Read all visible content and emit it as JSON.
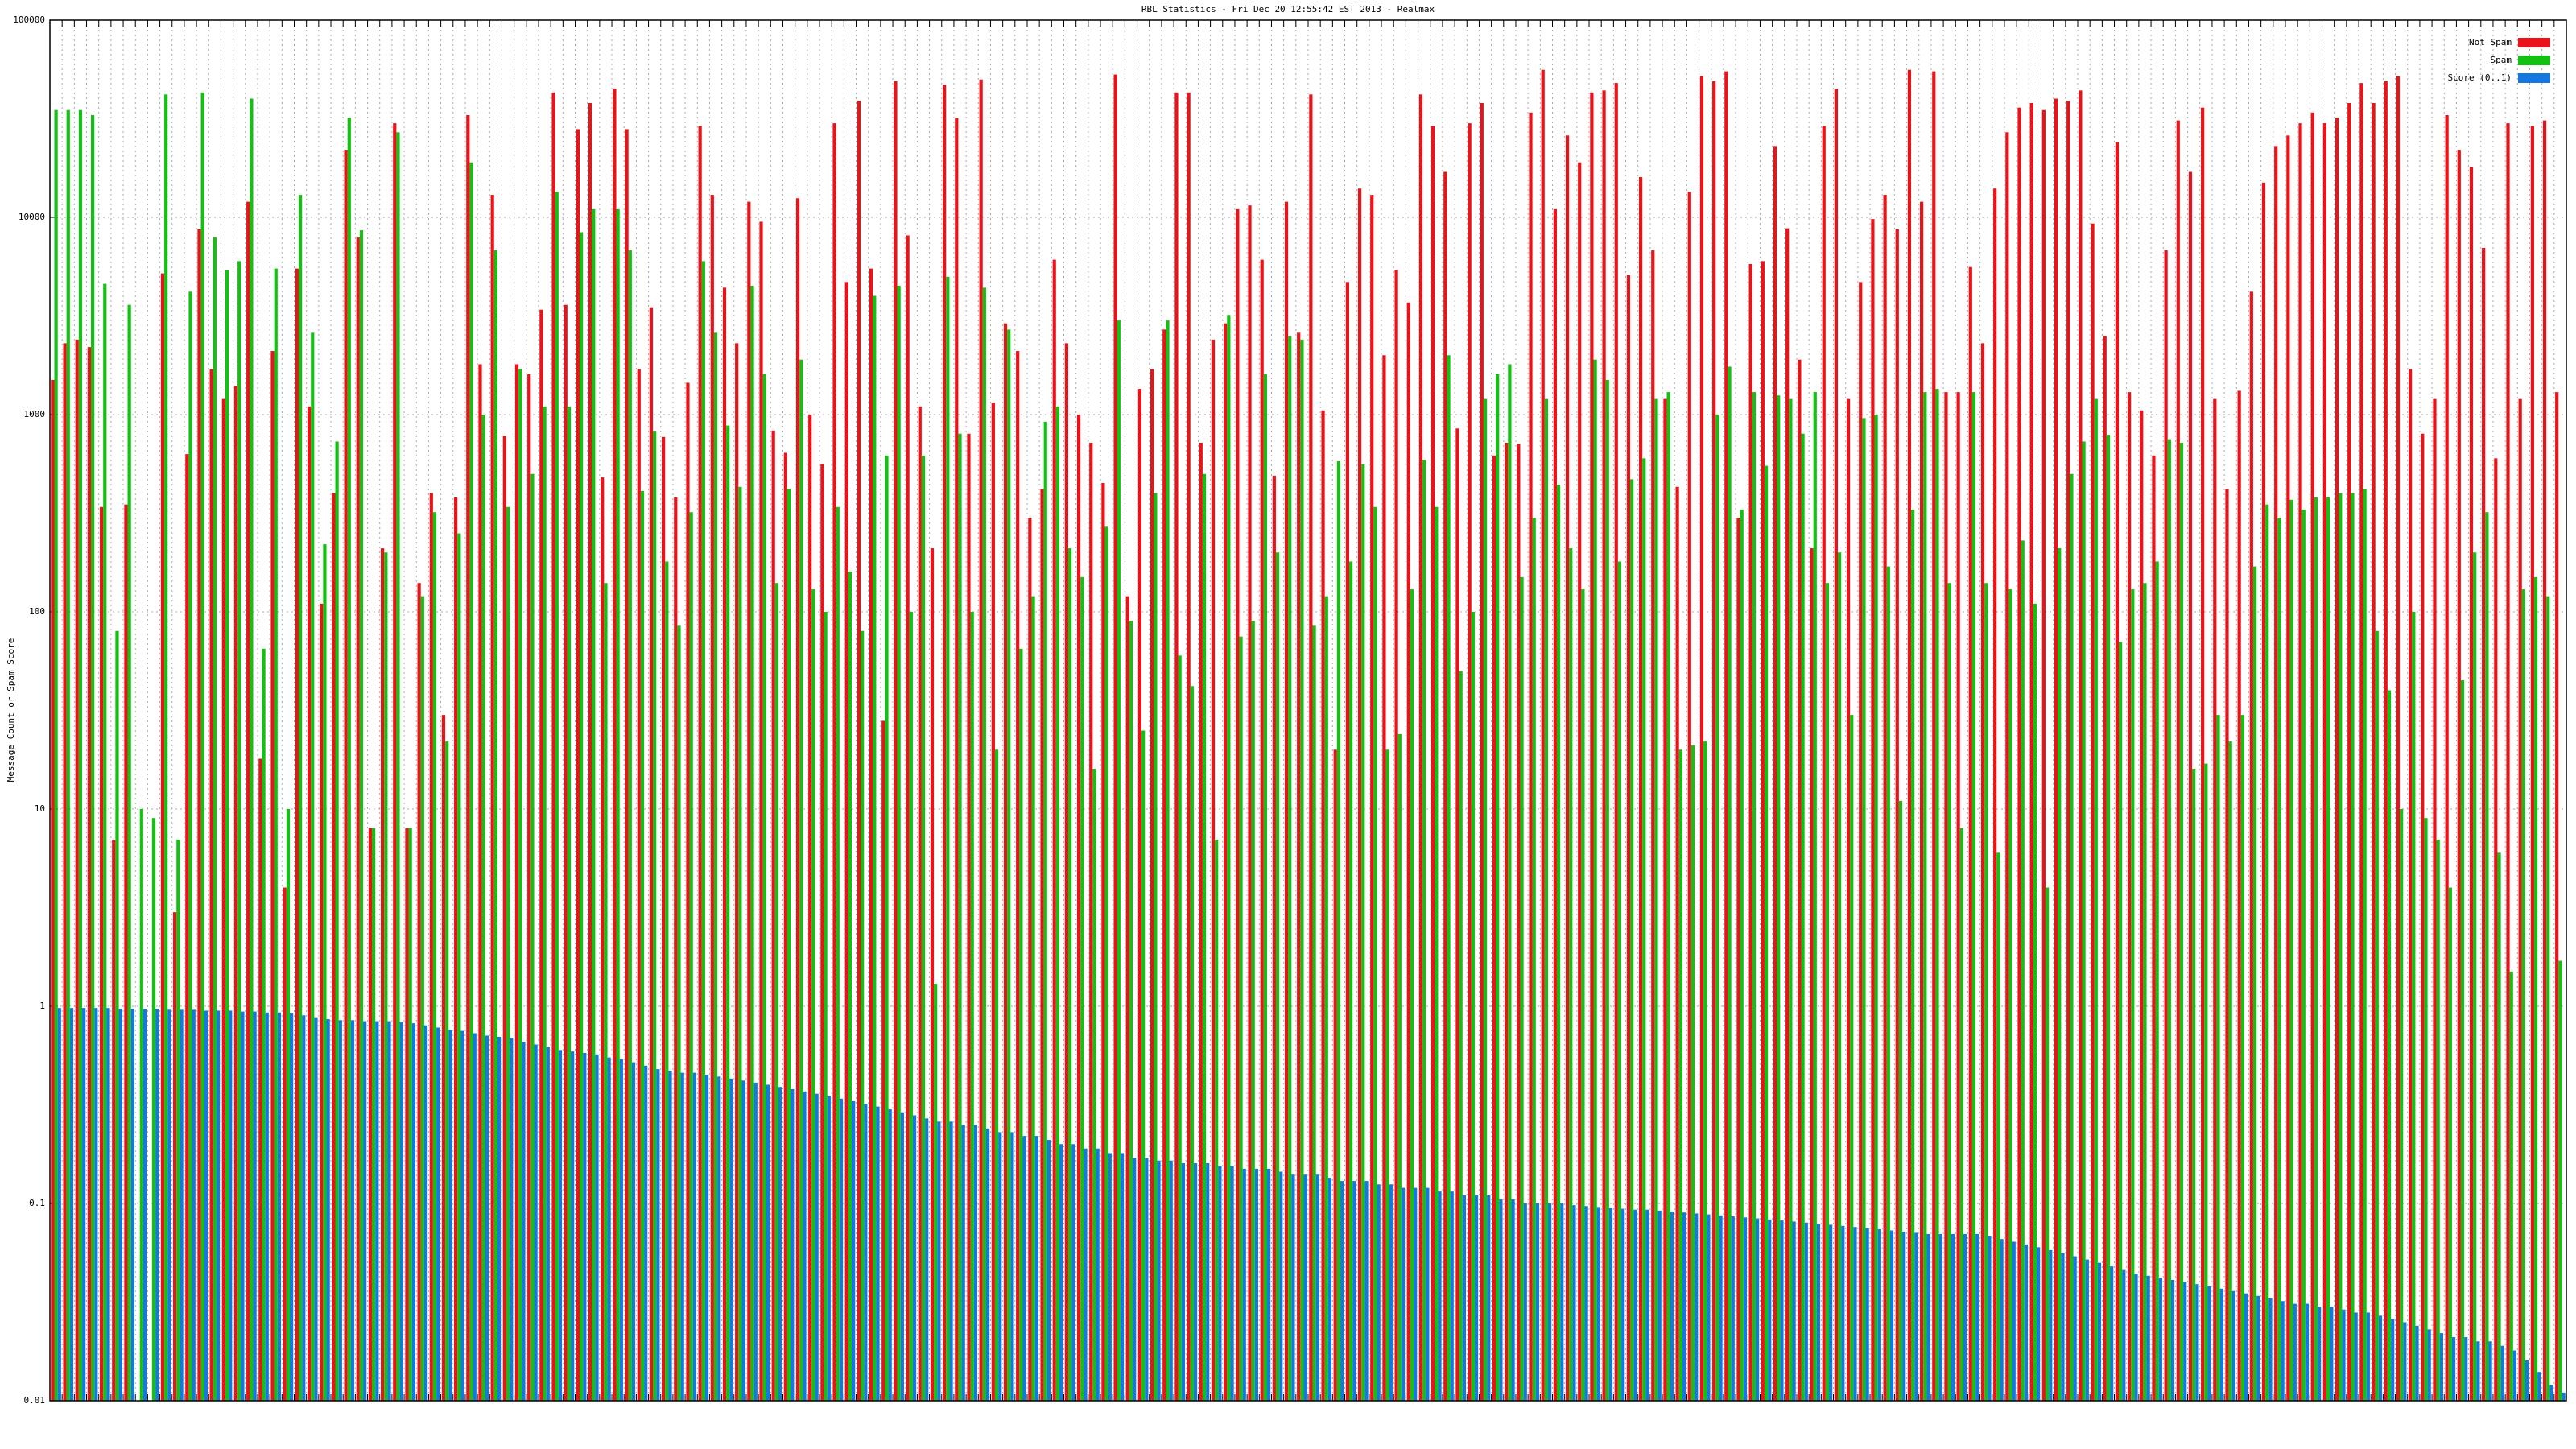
{
  "chart_data": {
    "type": "bar",
    "title": "RBL Statistics - Fri Dec 20 12:55:42 EST 2013 - Realmax",
    "y_label": "Message Count or Spam Score",
    "log_scale": true,
    "grid": true,
    "legend": "top-right",
    "ylim": [
      0.01,
      100000
    ],
    "yticks": [
      0.01,
      0.1,
      1,
      10,
      100,
      1000,
      10000,
      100000
    ],
    "categories": [
      null,
      null,
      null,
      null,
      null,
      null,
      null,
      null,
      null,
      null,
      null,
      null,
      null,
      null,
      null,
      null,
      null,
      null,
      null,
      null,
      null,
      null,
      null,
      null,
      null,
      null,
      null,
      null,
      null,
      null,
      null,
      null,
      null,
      null,
      null,
      null,
      null,
      null,
      null,
      null,
      null,
      null,
      null,
      null,
      null,
      null,
      null,
      null,
      null,
      null,
      null,
      null,
      null,
      null,
      null,
      null,
      null,
      null,
      null,
      null,
      null,
      null,
      null,
      null,
      null,
      null,
      null,
      null,
      null,
      null,
      null,
      null,
      null,
      null,
      null,
      null,
      null,
      null,
      null,
      null,
      null,
      null,
      null,
      null,
      null,
      null,
      null,
      null,
      null,
      null,
      null,
      null,
      null,
      null,
      null,
      null,
      null,
      null,
      null,
      null,
      null,
      null,
      null,
      null,
      null,
      null,
      null,
      null,
      null,
      null,
      null,
      null,
      null,
      null,
      null,
      null,
      null,
      null,
      null,
      null,
      null,
      null,
      null,
      null,
      null,
      null,
      null,
      null,
      null,
      null,
      null,
      null,
      null,
      null,
      null,
      null,
      null,
      null,
      null,
      null,
      null,
      null,
      null,
      null,
      null,
      null,
      null,
      null,
      null,
      null,
      null,
      null,
      null,
      null,
      null,
      null,
      null,
      null,
      null,
      null,
      null,
      null,
      null,
      null,
      null,
      null,
      null,
      null,
      null,
      null,
      null,
      null,
      null,
      null,
      null,
      null,
      null,
      null,
      null,
      null,
      null,
      null,
      null,
      null,
      null,
      null,
      null,
      null,
      null,
      null,
      null,
      null,
      null,
      null,
      null,
      null,
      null,
      null,
      null,
      null,
      null,
      null,
      null,
      null,
      null,
      null
    ],
    "series": [
      {
        "name": "Not Spam",
        "color": "#e8141a",
        "values": [
          1500,
          2300,
          2400,
          2200,
          340,
          7,
          350,
          null,
          null,
          5200,
          3,
          630,
          8700,
          1700,
          1200,
          1400,
          12000,
          18,
          2100,
          4,
          5500,
          1100,
          110,
          400,
          22000,
          7900,
          8,
          210,
          30000,
          8,
          140,
          400,
          30,
          380,
          33000,
          1800,
          13000,
          780,
          1800,
          1600,
          3400,
          43000,
          3600,
          28000,
          38000,
          480,
          45000,
          28000,
          1700,
          3500,
          770,
          380,
          1450,
          29000,
          13000,
          4400,
          2300,
          12000,
          9500,
          830,
          640,
          12500,
          1000,
          560,
          30000,
          4700,
          39000,
          5500,
          28,
          49000,
          8100,
          1100,
          210,
          47000,
          32000,
          800,
          50000,
          1150,
          2900,
          2100,
          300,
          420,
          6100,
          2300,
          1000,
          720,
          450,
          53000,
          120,
          1350,
          1700,
          2700,
          43000,
          43000,
          720,
          2400,
          2900,
          11000,
          11500,
          6100,
          490,
          12000,
          2600,
          42000,
          1050,
          20,
          4700,
          14000,
          13000,
          2000,
          5400,
          3700,
          42000,
          29000,
          17000,
          850,
          30000,
          38000,
          620,
          720,
          710,
          34000,
          56000,
          11000,
          26000,
          19000,
          43000,
          44000,
          48000,
          5100,
          16000,
          6800,
          1200,
          430,
          13500,
          52000,
          49000,
          55000,
          300,
          5800,
          6000,
          23000,
          8800,
          1900,
          210,
          29000,
          45000,
          1200,
          4700,
          9800,
          13000,
          8700,
          56000,
          12000,
          55000,
          1300,
          1300,
          5600,
          2300,
          14000,
          27000,
          36000,
          38000,
          35000,
          40000,
          39000,
          44000,
          9300,
          2500,
          24000,
          1300,
          1050,
          620,
          6800,
          31000,
          17000,
          36000,
          1200,
          420,
          1320,
          4200,
          15000,
          23000,
          26000,
          30000,
          34000,
          30000,
          32000,
          38000,
          48000,
          38000,
          49000,
          52000,
          1700,
          800,
          1200,
          33000,
          22000,
          18000,
          7000,
          600,
          30000,
          1200,
          29000,
          31000,
          1300
        ]
      },
      {
        "name": "Spam",
        "color": "#13c013",
        "values": [
          35000,
          35000,
          35000,
          33000,
          4600,
          80,
          3600,
          10,
          9,
          42000,
          7,
          4200,
          43000,
          7900,
          5400,
          6000,
          40000,
          65,
          5500,
          10,
          13000,
          2600,
          220,
          730,
          32000,
          8600,
          8,
          200,
          27000,
          8,
          120,
          320,
          22,
          250,
          19000,
          1000,
          6800,
          340,
          1700,
          500,
          1100,
          13500,
          1100,
          8400,
          11000,
          140,
          11000,
          6800,
          410,
          820,
          180,
          85,
          320,
          6000,
          2600,
          880,
          430,
          4500,
          1600,
          140,
          420,
          1900,
          130,
          100,
          340,
          160,
          80,
          4000,
          620,
          4500,
          100,
          620,
          1.3,
          5000,
          800,
          100,
          4400,
          20,
          2700,
          65,
          120,
          920,
          1100,
          210,
          150,
          16,
          270,
          3000,
          90,
          25,
          400,
          3000,
          60,
          42,
          500,
          7,
          3200,
          75,
          90,
          1600,
          200,
          2500,
          2400,
          85,
          120,
          580,
          180,
          560,
          340,
          20,
          24,
          130,
          590,
          340,
          2000,
          50,
          100,
          1200,
          1600,
          1800,
          150,
          300,
          1200,
          440,
          210,
          130,
          1900,
          1500,
          180,
          470,
          600,
          1200,
          1300,
          20,
          21,
          22,
          1000,
          1750,
          330,
          1300,
          550,
          1250,
          1200,
          800,
          1300,
          140,
          200,
          30,
          960,
          1000,
          170,
          11,
          330,
          1300,
          1350,
          140,
          8,
          1300,
          140,
          6,
          130,
          230,
          110,
          4,
          210,
          500,
          730,
          1200,
          790,
          70,
          130,
          140,
          180,
          750,
          720,
          16,
          17,
          30,
          22,
          30,
          170,
          350,
          300,
          370,
          330,
          380,
          380,
          400,
          400,
          420,
          80,
          40,
          10,
          100,
          9,
          7,
          4,
          45,
          200,
          320,
          6,
          1.5,
          130,
          150,
          120,
          1.7
        ]
      },
      {
        "name": "Score (0..1)",
        "color": "#1478e0",
        "values": [
          0.98,
          0.98,
          0.98,
          0.98,
          0.98,
          0.97,
          0.97,
          0.97,
          0.97,
          0.96,
          0.96,
          0.96,
          0.95,
          0.95,
          0.95,
          0.94,
          0.94,
          0.93,
          0.93,
          0.92,
          0.9,
          0.88,
          0.86,
          0.85,
          0.85,
          0.84,
          0.84,
          0.84,
          0.83,
          0.82,
          0.8,
          0.78,
          0.76,
          0.75,
          0.73,
          0.71,
          0.7,
          0.69,
          0.66,
          0.64,
          0.62,
          0.6,
          0.59,
          0.58,
          0.57,
          0.55,
          0.54,
          0.52,
          0.5,
          0.48,
          0.47,
          0.46,
          0.46,
          0.45,
          0.44,
          0.43,
          0.42,
          0.41,
          0.4,
          0.39,
          0.38,
          0.37,
          0.36,
          0.35,
          0.34,
          0.33,
          0.32,
          0.31,
          0.3,
          0.29,
          0.28,
          0.27,
          0.26,
          0.26,
          0.25,
          0.25,
          0.24,
          0.23,
          0.23,
          0.22,
          0.22,
          0.21,
          0.2,
          0.2,
          0.19,
          0.19,
          0.18,
          0.18,
          0.17,
          0.17,
          0.165,
          0.165,
          0.16,
          0.16,
          0.16,
          0.155,
          0.155,
          0.15,
          0.15,
          0.15,
          0.145,
          0.14,
          0.14,
          0.14,
          0.135,
          0.13,
          0.13,
          0.13,
          0.125,
          0.125,
          0.12,
          0.12,
          0.12,
          0.115,
          0.115,
          0.11,
          0.11,
          0.11,
          0.105,
          0.105,
          0.1,
          0.1,
          0.1,
          0.1,
          0.098,
          0.097,
          0.096,
          0.095,
          0.094,
          0.093,
          0.093,
          0.092,
          0.091,
          0.09,
          0.089,
          0.088,
          0.087,
          0.086,
          0.085,
          0.084,
          0.083,
          0.082,
          0.081,
          0.08,
          0.079,
          0.078,
          0.077,
          0.076,
          0.075,
          0.074,
          0.073,
          0.072,
          0.071,
          0.07,
          0.07,
          0.07,
          0.07,
          0.07,
          0.068,
          0.066,
          0.064,
          0.062,
          0.06,
          0.058,
          0.056,
          0.054,
          0.052,
          0.05,
          0.048,
          0.046,
          0.044,
          0.043,
          0.042,
          0.041,
          0.04,
          0.039,
          0.038,
          0.037,
          0.036,
          0.035,
          0.034,
          0.033,
          0.032,
          0.031,
          0.031,
          0.03,
          0.03,
          0.029,
          0.028,
          0.028,
          0.027,
          0.026,
          0.025,
          0.024,
          0.023,
          0.022,
          0.021,
          0.021,
          0.02,
          0.02,
          0.019,
          0.018,
          0.016,
          0.014,
          0.012,
          0.011
        ]
      }
    ]
  }
}
